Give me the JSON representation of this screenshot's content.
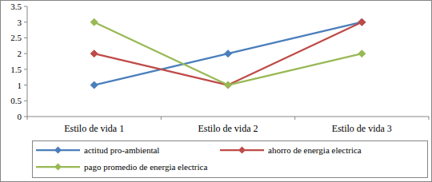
{
  "chart_data": {
    "type": "line",
    "categories": [
      "Estilo de vida 1",
      "Estilo de vida 2",
      "Estilo de vida 3"
    ],
    "series": [
      {
        "name": "actitud pro-ambiental",
        "color": "#4a7ebb",
        "values": [
          1,
          2,
          3
        ],
        "marker": "diamond"
      },
      {
        "name": "ahorro de energia electrica",
        "color": "#be4b48",
        "values": [
          2,
          1,
          3
        ],
        "marker": "diamond"
      },
      {
        "name": "pago promedio de energia electrica",
        "color": "#98b954",
        "values": [
          3,
          1,
          2
        ],
        "marker": "diamond"
      }
    ],
    "ylim": [
      0,
      3.5
    ],
    "yticks": [
      0,
      0.5,
      1,
      1.5,
      2,
      2.5,
      3,
      3.5
    ],
    "grid": false,
    "legend": "bottom"
  }
}
